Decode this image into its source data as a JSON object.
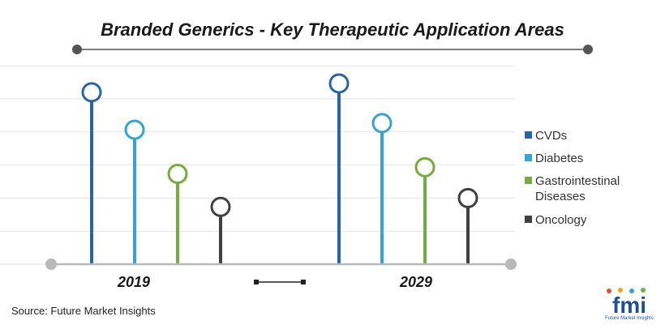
{
  "chart_data": {
    "type": "lollipop",
    "title": "Branded Generics  - Key Therapeutic Application Areas",
    "categories": [
      "2019",
      "2029"
    ],
    "series": [
      {
        "name": "CVDs",
        "color": "#2a64a8",
        "values": [
          78,
          82
        ]
      },
      {
        "name": "Diabetes",
        "color": "#35a3d3",
        "values": [
          61,
          64
        ]
      },
      {
        "name": "Gastrointestinal Diseases",
        "color": "#73ad3d",
        "values": [
          41,
          44
        ]
      },
      {
        "name": "Oncology",
        "color": "#404040",
        "values": [
          26,
          30
        ]
      }
    ],
    "ylim": [
      0,
      100
    ],
    "grid": true,
    "legend_position": "right"
  },
  "source": "Source: Future Market Insights",
  "logo": {
    "text": "fmi",
    "subtitle": "Future Market Insights"
  }
}
